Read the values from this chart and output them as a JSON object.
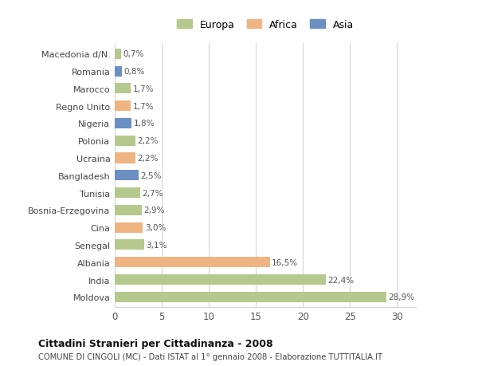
{
  "categories": [
    "Macedonia d/N.",
    "Romania",
    "Marocco",
    "Regno Unito",
    "Nigeria",
    "Polonia",
    "Ucraina",
    "Bangladesh",
    "Tunisia",
    "Bosnia-Erzegovina",
    "Cina",
    "Senegal",
    "Albania",
    "India",
    "Moldova"
  ],
  "values": [
    28.9,
    22.4,
    16.5,
    3.1,
    3.0,
    2.9,
    2.7,
    2.5,
    2.2,
    2.2,
    1.8,
    1.7,
    1.7,
    0.8,
    0.7
  ],
  "labels": [
    "28,9%",
    "22,4%",
    "16,5%",
    "3,1%",
    "3,0%",
    "2,9%",
    "2,7%",
    "2,5%",
    "2,2%",
    "2,2%",
    "1,8%",
    "1,7%",
    "1,7%",
    "0,8%",
    "0,7%"
  ],
  "colors": [
    "#b5c98e",
    "#b5c98e",
    "#f0b482",
    "#b5c98e",
    "#f0b482",
    "#b5c98e",
    "#b5c98e",
    "#6b8fc2",
    "#f0b482",
    "#b5c98e",
    "#6b8fc2",
    "#f0b482",
    "#b5c98e",
    "#6b8fc2",
    "#b5c98e"
  ],
  "legend_labels": [
    "Europa",
    "Africa",
    "Asia"
  ],
  "legend_colors": [
    "#b5c98e",
    "#f0b482",
    "#6b8fc2"
  ],
  "title": "Cittadini Stranieri per Cittadinanza - 2008",
  "subtitle": "COMUNE DI CINGOLI (MC) - Dati ISTAT al 1° gennaio 2008 - Elaborazione TUTTITALIA.IT",
  "xlim": [
    0,
    32
  ],
  "xticks": [
    0,
    5,
    10,
    15,
    20,
    25,
    30
  ],
  "bg_color": "#ffffff",
  "grid_color": "#d0d0d0",
  "bar_height": 0.6
}
